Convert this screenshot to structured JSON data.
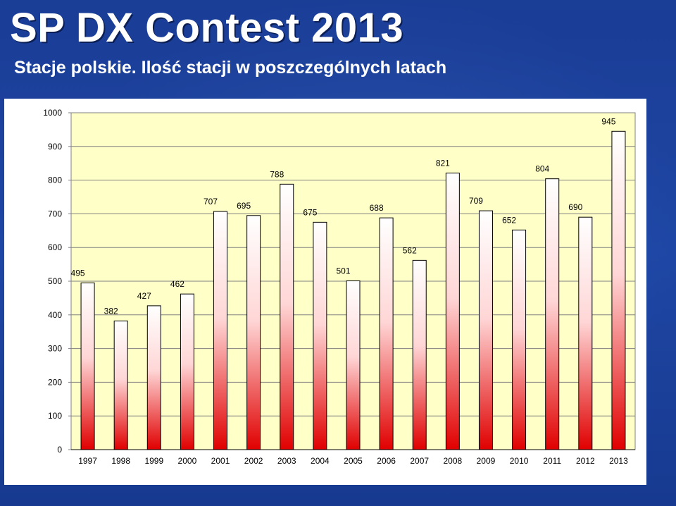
{
  "header": {
    "title": "SP DX Contest 2013",
    "subtitle": "Stacje polskie. Ilość stacji w poszczególnych latach"
  },
  "colors": {
    "background": "#1b3f98",
    "plot_area": "#ffffc8",
    "bar_top": "#ffffff",
    "bar_bottom": "#e00000",
    "gridline": "#808080"
  },
  "chart_data": {
    "type": "bar",
    "categories": [
      "1997",
      "1998",
      "1999",
      "2000",
      "2001",
      "2002",
      "2003",
      "2004",
      "2005",
      "2006",
      "2007",
      "2008",
      "2009",
      "2010",
      "2011",
      "2012",
      "2013"
    ],
    "values": [
      495,
      382,
      427,
      462,
      707,
      695,
      788,
      675,
      501,
      688,
      562,
      821,
      709,
      652,
      804,
      690,
      945
    ],
    "ylim": [
      0,
      1000
    ],
    "yticks": [
      0,
      100,
      200,
      300,
      400,
      500,
      600,
      700,
      800,
      900,
      1000
    ],
    "grid": true,
    "legend": "none"
  }
}
